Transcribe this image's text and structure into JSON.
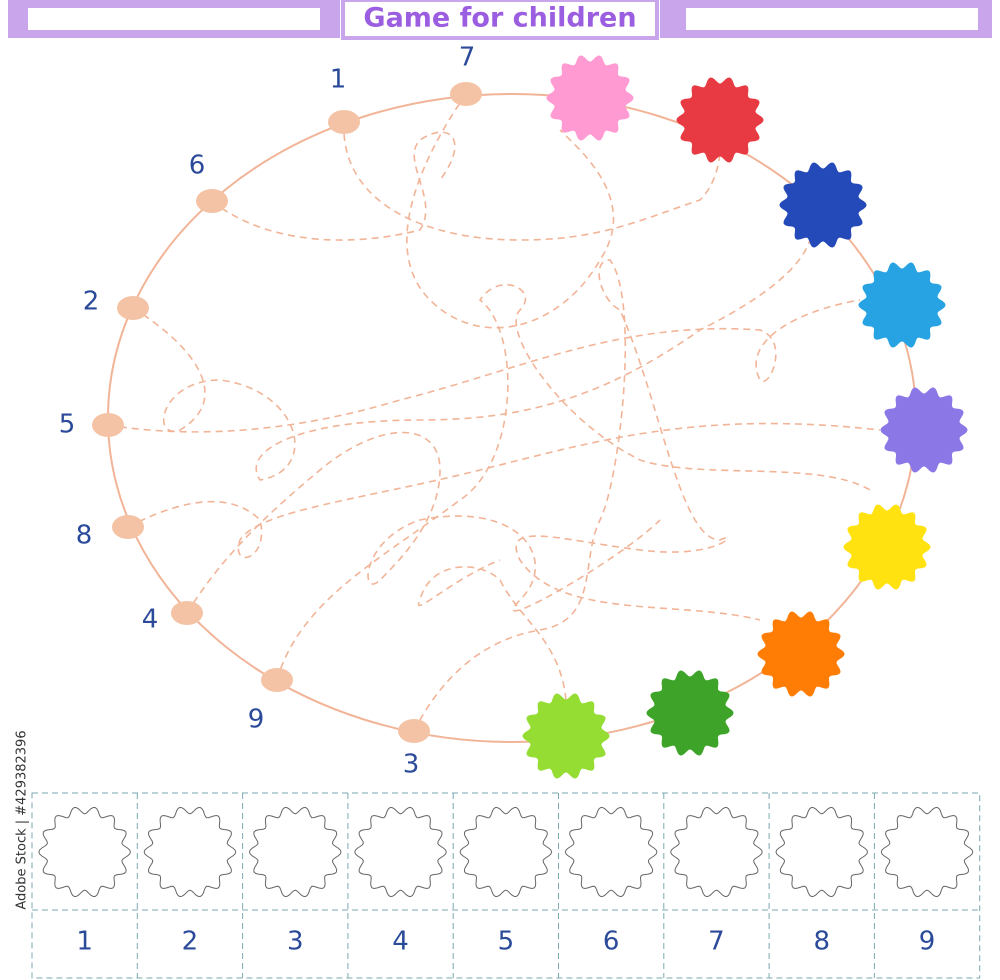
{
  "header": {
    "title": "Game for children"
  },
  "start_labels": [
    "7",
    "1",
    "6",
    "2",
    "5",
    "8",
    "4",
    "9",
    "3"
  ],
  "answer_grid": {
    "labels": [
      "1",
      "2",
      "3",
      "4",
      "5",
      "6",
      "7",
      "8",
      "9"
    ]
  },
  "watermark": "Adobe Stock | #429382396"
}
